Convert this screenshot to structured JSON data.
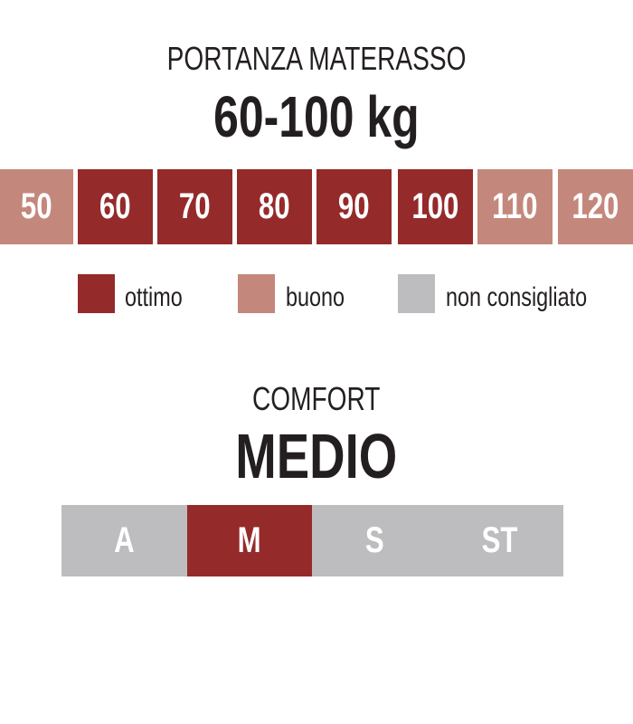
{
  "colors": {
    "ottimo": "#952a2a",
    "buono": "#c4877c",
    "non_consigliato": "#bdbdc0"
  },
  "portanza": {
    "title": "PORTANZA MATERASSO",
    "value": "60-100 kg",
    "scale": [
      {
        "label": "50",
        "rating": "buono"
      },
      {
        "label": "60",
        "rating": "ottimo"
      },
      {
        "label": "70",
        "rating": "ottimo"
      },
      {
        "label": "80",
        "rating": "ottimo"
      },
      {
        "label": "90",
        "rating": "ottimo"
      },
      {
        "label": "100",
        "rating": "ottimo"
      },
      {
        "label": "110",
        "rating": "buono"
      },
      {
        "label": "120",
        "rating": "buono"
      }
    ]
  },
  "legend": [
    {
      "key": "ottimo",
      "label": "ottimo"
    },
    {
      "key": "buono",
      "label": "buono"
    },
    {
      "key": "non_consigliato",
      "label": "non consigliato"
    }
  ],
  "comfort": {
    "title": "COMFORT",
    "value": "MEDIO",
    "levels": [
      {
        "label": "A",
        "selected": false
      },
      {
        "label": "M",
        "selected": true
      },
      {
        "label": "S",
        "selected": false
      },
      {
        "label": "ST",
        "selected": false
      }
    ]
  }
}
